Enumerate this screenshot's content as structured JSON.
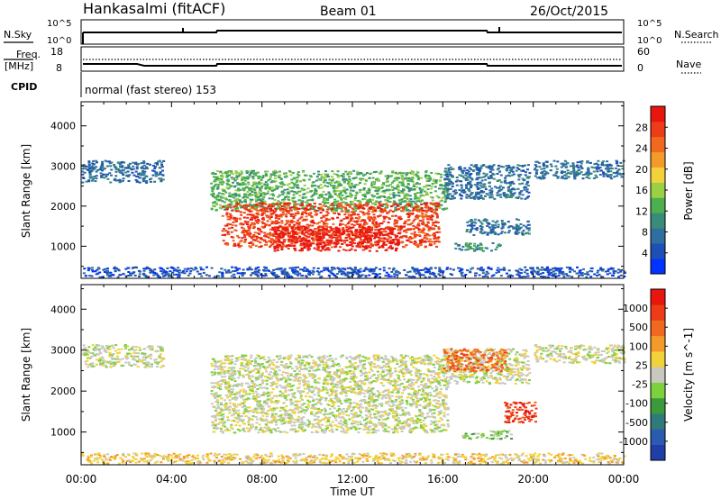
{
  "header": {
    "station": "Hankasalmi (fitACF)",
    "beam": "Beam 01",
    "date": "26/Oct/2015"
  },
  "noise_panel": {
    "left_label": "N.Sky",
    "right_label": "N.Search",
    "left_ticks": [
      "10^5",
      "10^0"
    ],
    "right_ticks": [
      "10^5",
      "10^0"
    ]
  },
  "freq_panel": {
    "left_label_line1": "Freq.",
    "left_label_line2": "[MHz]",
    "right_label": "Nave",
    "left_ticks": [
      "18",
      "8"
    ],
    "right_ticks": [
      "60",
      "0"
    ]
  },
  "cpid_panel": {
    "label": "CPID",
    "text": "normal (fast stereo) 153"
  },
  "colors": {
    "power_bar": [
      "#0033ff",
      "#1f4fb4",
      "#2f6f9f",
      "#3a8c7a",
      "#4caf50",
      "#9bd045",
      "#f2d23a",
      "#f39a2a",
      "#f0691e",
      "#ee3b18",
      "#e8160f"
    ],
    "velocity_bar": [
      "#1f3ea8",
      "#2a5bb0",
      "#2f7a7a",
      "#3b9a3b",
      "#7cd13c",
      "#c8c8c0",
      "#f2d23a",
      "#f39a2a",
      "#f0691e",
      "#ee3b18",
      "#e8160f"
    ]
  },
  "chart_data": [
    {
      "type": "heatmap",
      "name": "Power",
      "ylabel": "Slant Range [km]",
      "ylim": [
        200,
        4600
      ],
      "yticks": [
        "4000",
        "3000",
        "2000",
        "1000"
      ],
      "colorbar_label": "Power [dB]",
      "colorbar_ticks": [
        "28",
        "24",
        "20",
        "16",
        "12",
        "8",
        "4"
      ],
      "colorbar_range": [
        0,
        32
      ],
      "patches": [
        {
          "t0": 0.0,
          "t1": 3.6,
          "r0": 2600,
          "r1": 3150,
          "level": 2
        },
        {
          "t0": 5.7,
          "t1": 16.2,
          "r0": 1900,
          "r1": 2900,
          "level": 4
        },
        {
          "t0": 6.2,
          "t1": 15.8,
          "r0": 1000,
          "r1": 2100,
          "level": 9
        },
        {
          "t0": 8.5,
          "t1": 14.0,
          "r0": 900,
          "r1": 1500,
          "level": 10
        },
        {
          "t0": 16.0,
          "t1": 19.8,
          "r0": 2200,
          "r1": 3050,
          "level": 2
        },
        {
          "t0": 17.0,
          "t1": 19.8,
          "r0": 1300,
          "r1": 1700,
          "level": 2
        },
        {
          "t0": 16.5,
          "t1": 18.5,
          "r0": 900,
          "r1": 1100,
          "level": 3
        },
        {
          "t0": 20.0,
          "t1": 24.0,
          "r0": 2700,
          "r1": 3150,
          "level": 2
        },
        {
          "t0": 0.0,
          "t1": 24.0,
          "r0": 250,
          "r1": 500,
          "level": 1
        }
      ]
    },
    {
      "type": "heatmap",
      "name": "Velocity",
      "ylabel": "Slant Range [km]",
      "ylim": [
        200,
        4600
      ],
      "yticks": [
        "4000",
        "3000",
        "2000",
        "1000"
      ],
      "xticks": [
        "00:00",
        "04:00",
        "08:00",
        "12:00",
        "16:00",
        "20:00",
        "00:00"
      ],
      "xlabel": "Time UT",
      "xlim": [
        0,
        24
      ],
      "colorbar_label": "Velocity [m s^-1]",
      "colorbar_ticks": [
        "1000",
        "500",
        "100",
        "25",
        "-25",
        "-100",
        "-500",
        "-1000"
      ],
      "patches": [
        {
          "t0": 0.0,
          "t1": 3.6,
          "r0": 2600,
          "r1": 3150,
          "level": 5
        },
        {
          "t0": 5.7,
          "t1": 16.2,
          "r0": 1000,
          "r1": 2900,
          "level": 5
        },
        {
          "t0": 16.0,
          "t1": 19.8,
          "r0": 2200,
          "r1": 3050,
          "level": 5
        },
        {
          "t0": 16.0,
          "t1": 18.8,
          "r0": 2500,
          "r1": 3050,
          "level": 8
        },
        {
          "t0": 18.7,
          "t1": 20.1,
          "r0": 1250,
          "r1": 1750,
          "level": 9
        },
        {
          "t0": 16.8,
          "t1": 19.0,
          "r0": 850,
          "r1": 1050,
          "level": 4
        },
        {
          "t0": 20.0,
          "t1": 24.0,
          "r0": 2700,
          "r1": 3150,
          "level": 5
        },
        {
          "t0": 0.0,
          "t1": 24.0,
          "r0": 250,
          "r1": 500,
          "level": 6
        }
      ]
    }
  ]
}
